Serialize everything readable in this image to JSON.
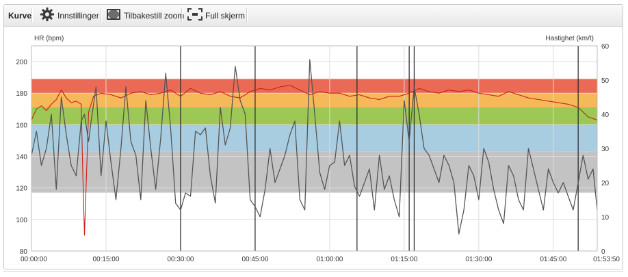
{
  "toolbar": {
    "title": "Kurve",
    "settings_label": "Innstillinger",
    "reset_zoom_label": "Tilbakestill zoom",
    "fullscreen_label": "Full skjerm",
    "icons": [
      "gear-icon",
      "reset-zoom-icon",
      "fullscreen-icon"
    ]
  },
  "chart_data": {
    "type": "line",
    "ylabel": "HR (bpm)",
    "y2label": "Hastighet (km/t)",
    "ylim": [
      80,
      210
    ],
    "y2lim": [
      0,
      60
    ],
    "yticks": [
      "80",
      "100",
      "120",
      "140",
      "160",
      "180",
      "200"
    ],
    "y2ticks": [
      "0",
      "10",
      "20",
      "30",
      "40",
      "50",
      "60"
    ],
    "xlim_seconds": [
      0,
      6830
    ],
    "xticks": [
      "00:00:00",
      "00:15:00",
      "00:30:00",
      "00:45:00",
      "01:00:00",
      "01:15:00",
      "01:30:00",
      "01:45:00",
      "01:53:50"
    ],
    "grid": true,
    "hr_zones": [
      {
        "from": 117,
        "to": 143,
        "color": "#c3c3c3"
      },
      {
        "from": 143,
        "to": 160,
        "color": "#a9cde0"
      },
      {
        "from": 160,
        "to": 171,
        "color": "#9dc855"
      },
      {
        "from": 171,
        "to": 180,
        "color": "#f5b95a"
      },
      {
        "from": 180,
        "to": 189,
        "color": "#ea6a55"
      }
    ],
    "lap_markers": [
      "00:30:00",
      "00:45:00",
      "01:05:30",
      "01:16:00",
      "01:17:00",
      "01:50:00"
    ],
    "series": [
      {
        "axis": "left",
        "color": "#cc1f1a",
        "points": [
          [
            "00:00:00",
            163
          ],
          [
            "00:01:00",
            170
          ],
          [
            "00:02:00",
            172
          ],
          [
            "00:03:00",
            169
          ],
          [
            "00:04:00",
            173
          ],
          [
            "00:05:00",
            176
          ],
          [
            "00:06:00",
            182
          ],
          [
            "00:07:00",
            177
          ],
          [
            "00:08:00",
            174
          ],
          [
            "00:09:00",
            175
          ],
          [
            "00:10:00",
            173
          ],
          [
            "00:10:20",
            128
          ],
          [
            "00:10:40",
            90
          ],
          [
            "00:11:00",
            121
          ],
          [
            "00:11:30",
            168
          ],
          [
            "00:12:30",
            178
          ],
          [
            "00:14:00",
            180
          ],
          [
            "00:16:00",
            179
          ],
          [
            "00:18:00",
            177
          ],
          [
            "00:20:00",
            180
          ],
          [
            "00:22:00",
            181
          ],
          [
            "00:24:00",
            179
          ],
          [
            "00:26:00",
            180
          ],
          [
            "00:28:00",
            182
          ],
          [
            "00:30:00",
            178
          ],
          [
            "00:32:00",
            183
          ],
          [
            "00:34:00",
            180
          ],
          [
            "00:36:00",
            179
          ],
          [
            "00:38:00",
            181
          ],
          [
            "00:40:00",
            178
          ],
          [
            "00:42:00",
            177
          ],
          [
            "00:44:00",
            181
          ],
          [
            "00:46:00",
            183
          ],
          [
            "00:48:00",
            182
          ],
          [
            "00:50:00",
            184
          ],
          [
            "00:52:00",
            185
          ],
          [
            "00:54:00",
            182
          ],
          [
            "00:56:00",
            179
          ],
          [
            "00:58:00",
            181
          ],
          [
            "01:00:00",
            180
          ],
          [
            "01:02:00",
            180
          ],
          [
            "01:04:00",
            178
          ],
          [
            "01:06:00",
            179
          ],
          [
            "01:08:00",
            177
          ],
          [
            "01:10:00",
            176
          ],
          [
            "01:12:00",
            178
          ],
          [
            "01:14:00",
            178
          ],
          [
            "01:16:00",
            180
          ],
          [
            "01:18:00",
            183
          ],
          [
            "01:20:00",
            181
          ],
          [
            "01:22:00",
            180
          ],
          [
            "01:24:00",
            182
          ],
          [
            "01:26:00",
            181
          ],
          [
            "01:28:00",
            182
          ],
          [
            "01:30:00",
            180
          ],
          [
            "01:32:00",
            179
          ],
          [
            "01:34:00",
            178
          ],
          [
            "01:36:00",
            181
          ],
          [
            "01:38:00",
            179
          ],
          [
            "01:40:00",
            177
          ],
          [
            "01:42:00",
            176
          ],
          [
            "01:44:00",
            175
          ],
          [
            "01:46:00",
            174
          ],
          [
            "01:48:00",
            173
          ],
          [
            "01:50:00",
            171
          ],
          [
            "01:52:00",
            165
          ],
          [
            "01:53:50",
            163
          ]
        ]
      },
      {
        "axis": "right",
        "color": "#555555",
        "points": [
          [
            "00:00:00",
            28
          ],
          [
            "00:01:00",
            35
          ],
          [
            "00:02:00",
            25
          ],
          [
            "00:03:00",
            30
          ],
          [
            "00:04:00",
            40
          ],
          [
            "00:05:00",
            18
          ],
          [
            "00:06:00",
            45
          ],
          [
            "00:07:00",
            34
          ],
          [
            "00:08:00",
            25
          ],
          [
            "00:09:00",
            22
          ],
          [
            "00:10:00",
            38
          ],
          [
            "00:10:40",
            40
          ],
          [
            "00:11:30",
            32
          ],
          [
            "00:12:00",
            38
          ],
          [
            "00:13:00",
            48
          ],
          [
            "00:14:00",
            22
          ],
          [
            "00:15:00",
            38
          ],
          [
            "00:16:00",
            26
          ],
          [
            "00:17:00",
            15
          ],
          [
            "00:18:00",
            30
          ],
          [
            "00:19:00",
            48
          ],
          [
            "00:20:00",
            32
          ],
          [
            "00:21:00",
            28
          ],
          [
            "00:22:00",
            15
          ],
          [
            "00:23:00",
            44
          ],
          [
            "00:24:00",
            30
          ],
          [
            "00:25:00",
            18
          ],
          [
            "00:26:00",
            33
          ],
          [
            "00:27:00",
            52
          ],
          [
            "00:28:00",
            36
          ],
          [
            "00:29:00",
            14
          ],
          [
            "00:30:00",
            12
          ],
          [
            "00:31:00",
            17
          ],
          [
            "00:32:00",
            16
          ],
          [
            "00:33:00",
            35
          ],
          [
            "00:34:00",
            34
          ],
          [
            "00:35:00",
            36
          ],
          [
            "00:36:00",
            22
          ],
          [
            "00:37:00",
            14
          ],
          [
            "00:38:00",
            42
          ],
          [
            "00:39:00",
            31
          ],
          [
            "00:40:00",
            36
          ],
          [
            "00:41:00",
            54
          ],
          [
            "00:42:00",
            44
          ],
          [
            "00:43:00",
            40
          ],
          [
            "00:44:00",
            15
          ],
          [
            "00:45:00",
            13
          ],
          [
            "00:46:00",
            10
          ],
          [
            "00:47:00",
            18
          ],
          [
            "00:48:00",
            30
          ],
          [
            "00:49:00",
            20
          ],
          [
            "00:50:00",
            24
          ],
          [
            "00:51:00",
            28
          ],
          [
            "00:52:00",
            34
          ],
          [
            "00:53:00",
            38
          ],
          [
            "00:54:00",
            15
          ],
          [
            "00:55:00",
            12
          ],
          [
            "00:56:00",
            56
          ],
          [
            "00:57:00",
            40
          ],
          [
            "00:58:00",
            23
          ],
          [
            "00:59:00",
            18
          ],
          [
            "01:00:00",
            25
          ],
          [
            "01:01:00",
            26
          ],
          [
            "01:02:00",
            38
          ],
          [
            "01:03:00",
            25
          ],
          [
            "01:04:00",
            28
          ],
          [
            "01:05:00",
            19
          ],
          [
            "01:06:00",
            16
          ],
          [
            "01:07:00",
            20
          ],
          [
            "01:08:00",
            24
          ],
          [
            "01:09:00",
            12
          ],
          [
            "01:10:00",
            28
          ],
          [
            "01:11:00",
            18
          ],
          [
            "01:12:00",
            22
          ],
          [
            "01:13:00",
            15
          ],
          [
            "01:14:00",
            10
          ],
          [
            "01:15:00",
            44
          ],
          [
            "01:16:00",
            32
          ],
          [
            "01:17:00",
            48
          ],
          [
            "01:18:00",
            40
          ],
          [
            "01:19:00",
            30
          ],
          [
            "01:20:00",
            28
          ],
          [
            "01:21:00",
            24
          ],
          [
            "01:22:00",
            20
          ],
          [
            "01:23:00",
            28
          ],
          [
            "01:24:00",
            25
          ],
          [
            "01:25:00",
            20
          ],
          [
            "01:26:00",
            5
          ],
          [
            "01:27:00",
            12
          ],
          [
            "01:28:00",
            25
          ],
          [
            "01:29:00",
            22
          ],
          [
            "01:30:00",
            15
          ],
          [
            "01:31:00",
            30
          ],
          [
            "01:32:00",
            26
          ],
          [
            "01:33:00",
            18
          ],
          [
            "01:34:00",
            12
          ],
          [
            "01:35:00",
            8
          ],
          [
            "01:36:00",
            25
          ],
          [
            "01:37:00",
            22
          ],
          [
            "01:38:00",
            15
          ],
          [
            "01:39:00",
            12
          ],
          [
            "01:40:00",
            30
          ],
          [
            "01:41:00",
            24
          ],
          [
            "01:42:00",
            18
          ],
          [
            "01:43:00",
            12
          ],
          [
            "01:44:00",
            24
          ],
          [
            "01:45:00",
            20
          ],
          [
            "01:46:00",
            17
          ],
          [
            "01:47:00",
            20
          ],
          [
            "01:48:00",
            16
          ],
          [
            "01:49:00",
            12
          ],
          [
            "01:50:00",
            20
          ],
          [
            "01:51:00",
            28
          ],
          [
            "01:52:00",
            21
          ],
          [
            "01:53:00",
            24
          ],
          [
            "01:53:50",
            12
          ]
        ]
      }
    ]
  }
}
